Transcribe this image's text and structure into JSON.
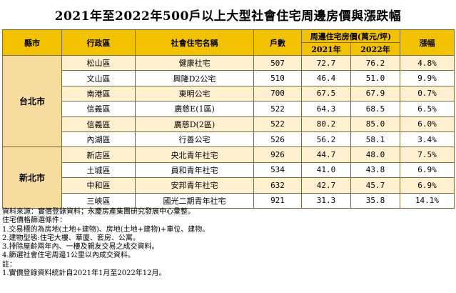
{
  "title": "2021年至2022年500戶以上大型社會住宅周邊房價與漲跌幅",
  "headers": {
    "city": "縣市",
    "district": "行政區",
    "name": "社會住宅名稱",
    "households": "戶數",
    "price_group": "周邊住宅房價(萬元/坪)",
    "y2021": "2021年",
    "y2022": "2022年",
    "change": "漲幅"
  },
  "cities": [
    {
      "name": "台北市",
      "rows": [
        {
          "district": "松山區",
          "name": "健康社宅",
          "households": "507",
          "p2021": "72.7",
          "p2022": "76.2",
          "change": "4.8%"
        },
        {
          "district": "文山區",
          "name": "興隆D2公宅",
          "households": "510",
          "p2021": "46.4",
          "p2022": "51.0",
          "change": "9.9%"
        },
        {
          "district": "南港區",
          "name": "東明公宅",
          "households": "700",
          "p2021": "67.5",
          "p2022": "67.9",
          "change": "0.7%"
        },
        {
          "district": "信義區",
          "name": "廣慈E(1區)",
          "households": "522",
          "p2021": "64.3",
          "p2022": "68.5",
          "change": "6.5%"
        },
        {
          "district": "信義區",
          "name": "廣慈D(2區)",
          "households": "522",
          "p2021": "80.2",
          "p2022": "85.0",
          "change": "6.0%"
        },
        {
          "district": "內湖區",
          "name": "行善公宅",
          "households": "526",
          "p2021": "56.2",
          "p2022": "58.1",
          "change": "3.4%"
        }
      ]
    },
    {
      "name": "新北市",
      "rows": [
        {
          "district": "新店區",
          "name": "央北青年社宅",
          "households": "926",
          "p2021": "44.7",
          "p2022": "48.0",
          "change": "7.5%"
        },
        {
          "district": "土城區",
          "name": "員和青年社宅",
          "households": "534",
          "p2021": "41.0",
          "p2022": "43.8",
          "change": "6.9%"
        },
        {
          "district": "中和區",
          "name": "安邦青年社宅",
          "households": "632",
          "p2021": "42.7",
          "p2022": "45.7",
          "change": "6.9%"
        },
        {
          "district": "三峽區",
          "name": "國光二期青年社宅",
          "households": "921",
          "p2021": "31.3",
          "p2022": "35.8",
          "change": "14.1%"
        }
      ]
    }
  ],
  "notes": [
    "資料來源：實價登錄資料；永慶房產集團研究發展中心彙整。",
    "住宅價格篩選條件：",
    "1.交易標的為房地(土地+建物)、房地(土地+建物)+車位、建物。",
    "2.建物型態:住宅大樓、華廈、套房、公寓。",
    "3.排除屋齡兩年內、一樓及親友交易之成交資料。",
    "4.篩選社會住宅周邊1公里以內成交資料。",
    "註：",
    "1.實價登錄資料統計自2021年1月至2022年12月。"
  ]
}
